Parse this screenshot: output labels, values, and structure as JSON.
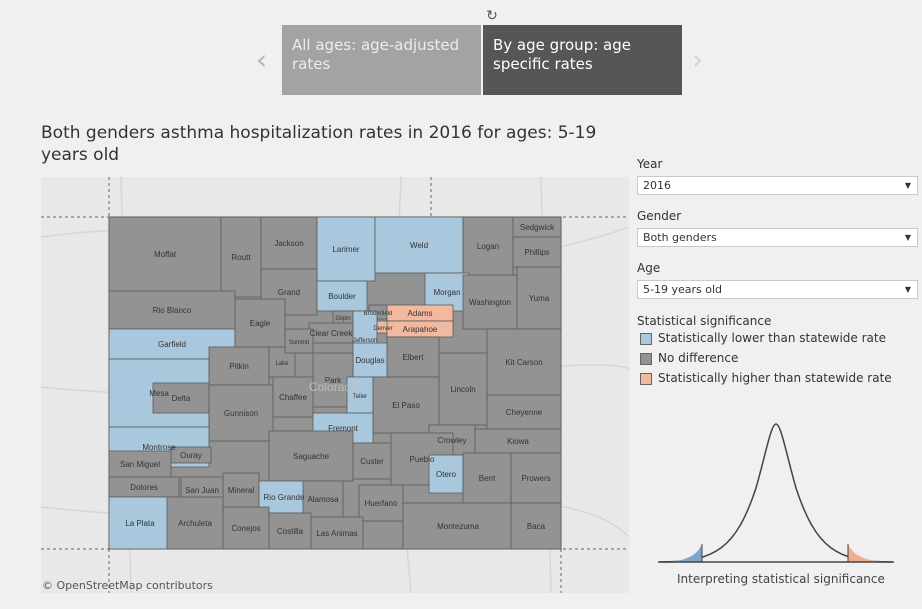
{
  "toolbar": {
    "reset_icon": "↻"
  },
  "tabs": [
    {
      "label": "All ages: age-adjusted rates"
    },
    {
      "label": "By age group: age specific rates"
    }
  ],
  "nav": {
    "prev": "‹",
    "next": "›"
  },
  "map": {
    "title": "Both genders asthma hospitalization rates in 2016 for ages: 5-19 years old",
    "credit": "© OpenStreetMap contributors",
    "state_label": "Colorado",
    "colors": {
      "lower": "#a9c8dd",
      "none": "#939393",
      "higher": "#f2b9a1"
    },
    "counties": [
      {
        "name": "Moffat",
        "sig": "none"
      },
      {
        "name": "Routt",
        "sig": "none"
      },
      {
        "name": "Jackson",
        "sig": "none"
      },
      {
        "name": "Larimer",
        "sig": "lower"
      },
      {
        "name": "Weld",
        "sig": "lower"
      },
      {
        "name": "Logan",
        "sig": "none"
      },
      {
        "name": "Sedgwick",
        "sig": "none"
      },
      {
        "name": "Phillips",
        "sig": "none"
      },
      {
        "name": "Rio Blanco",
        "sig": "none"
      },
      {
        "name": "Grand",
        "sig": "none"
      },
      {
        "name": "Boulder",
        "sig": "lower"
      },
      {
        "name": "Morgan",
        "sig": "lower"
      },
      {
        "name": "Washington",
        "sig": "none"
      },
      {
        "name": "Yuma",
        "sig": "none"
      },
      {
        "name": "Garfield",
        "sig": "lower"
      },
      {
        "name": "Eagle",
        "sig": "none"
      },
      {
        "name": "Broomfield",
        "sig": "none"
      },
      {
        "name": "Adams",
        "sig": "higher"
      },
      {
        "name": "Gilpin",
        "sig": "none"
      },
      {
        "name": "Clear Creek",
        "sig": "none"
      },
      {
        "name": "Denver",
        "sig": "higher"
      },
      {
        "name": "Arapahoe",
        "sig": "higher"
      },
      {
        "name": "Jefferson",
        "sig": "lower"
      },
      {
        "name": "Elbert",
        "sig": "none"
      },
      {
        "name": "Kit Carson",
        "sig": "none"
      },
      {
        "name": "Mesa",
        "sig": "lower"
      },
      {
        "name": "Pitkin",
        "sig": "none"
      },
      {
        "name": "Lake",
        "sig": "none"
      },
      {
        "name": "Summit",
        "sig": "none"
      },
      {
        "name": "Douglas",
        "sig": "lower"
      },
      {
        "name": "Lincoln",
        "sig": "none"
      },
      {
        "name": "Delta",
        "sig": "none"
      },
      {
        "name": "Park",
        "sig": "none"
      },
      {
        "name": "Teller",
        "sig": "lower"
      },
      {
        "name": "El Paso",
        "sig": "none"
      },
      {
        "name": "Cheyenne",
        "sig": "none"
      },
      {
        "name": "Gunnison",
        "sig": "none"
      },
      {
        "name": "Chaffee",
        "sig": "none"
      },
      {
        "name": "Montrose",
        "sig": "lower"
      },
      {
        "name": "Fremont",
        "sig": "lower"
      },
      {
        "name": "Crowley",
        "sig": "none"
      },
      {
        "name": "Kiowa",
        "sig": "none"
      },
      {
        "name": "Ouray",
        "sig": "none"
      },
      {
        "name": "San Miguel",
        "sig": "none"
      },
      {
        "name": "Saguache",
        "sig": "none"
      },
      {
        "name": "Custer",
        "sig": "none"
      },
      {
        "name": "Pueblo",
        "sig": "none"
      },
      {
        "name": "Otero",
        "sig": "lower"
      },
      {
        "name": "Bent",
        "sig": "none"
      },
      {
        "name": "Prowers",
        "sig": "none"
      },
      {
        "name": "Dolores",
        "sig": "none"
      },
      {
        "name": "San Juan",
        "sig": "none"
      },
      {
        "name": "Mineral",
        "sig": "none"
      },
      {
        "name": "Rio Grande",
        "sig": "lower"
      },
      {
        "name": "Alamosa",
        "sig": "none"
      },
      {
        "name": "Huerfano",
        "sig": "none"
      },
      {
        "name": "Montezuma",
        "sig": "none"
      },
      {
        "name": "La Plata",
        "sig": "lower"
      },
      {
        "name": "Archuleta",
        "sig": "none"
      },
      {
        "name": "Conejos",
        "sig": "none"
      },
      {
        "name": "Costilla",
        "sig": "none"
      },
      {
        "name": "Las Animas",
        "sig": "none"
      },
      {
        "name": "Baca",
        "sig": "none"
      }
    ]
  },
  "filters": {
    "year": {
      "label": "Year",
      "value": "2016"
    },
    "gender": {
      "label": "Gender",
      "value": "Both genders"
    },
    "age": {
      "label": "Age",
      "value": "5-19 years old"
    },
    "caret": "▼"
  },
  "legend": {
    "title": "Statistical significance",
    "items": [
      {
        "label": "Statistically lower than statewide rate",
        "color": "#a9c8dd"
      },
      {
        "label": "No difference",
        "color": "#939393"
      },
      {
        "label": "Statistically higher than statewide rate",
        "color": "#f2b9a1"
      }
    ]
  },
  "interpretation": {
    "label": "Interpreting statistical significance"
  }
}
